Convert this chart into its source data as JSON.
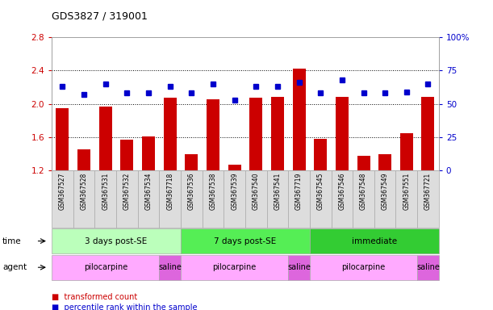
{
  "title": "GDS3827 / 319001",
  "samples": [
    "GSM367527",
    "GSM367528",
    "GSM367531",
    "GSM367532",
    "GSM367534",
    "GSM367718",
    "GSM367536",
    "GSM367538",
    "GSM367539",
    "GSM367540",
    "GSM367541",
    "GSM367719",
    "GSM367545",
    "GSM367546",
    "GSM367548",
    "GSM367549",
    "GSM367551",
    "GSM367721"
  ],
  "bar_values": [
    1.95,
    1.45,
    1.97,
    1.57,
    1.61,
    2.07,
    1.4,
    2.05,
    1.27,
    2.07,
    2.08,
    2.42,
    1.58,
    2.08,
    1.38,
    1.4,
    1.65,
    2.08
  ],
  "dot_percentiles": [
    63,
    57,
    65,
    58,
    58,
    63,
    58,
    65,
    53,
    63,
    63,
    66,
    58,
    68,
    58,
    58,
    59,
    65
  ],
  "ylim": [
    1.2,
    2.8
  ],
  "y_left_ticks": [
    1.2,
    1.6,
    2.0,
    2.4,
    2.8
  ],
  "y_right_ticks": [
    0,
    25,
    50,
    75,
    100
  ],
  "bar_color": "#cc0000",
  "dot_color": "#0000cc",
  "bar_bottom": 1.2,
  "groups": [
    {
      "label": "3 days post-SE",
      "start": 0,
      "end": 5,
      "color": "#bbffbb"
    },
    {
      "label": "7 days post-SE",
      "start": 6,
      "end": 11,
      "color": "#55ee55"
    },
    {
      "label": "immediate",
      "start": 12,
      "end": 17,
      "color": "#33cc33"
    }
  ],
  "agents": [
    {
      "label": "pilocarpine",
      "start": 0,
      "end": 4,
      "color": "#ffaaff"
    },
    {
      "label": "saline",
      "start": 5,
      "end": 5,
      "color": "#dd66dd"
    },
    {
      "label": "pilocarpine",
      "start": 6,
      "end": 10,
      "color": "#ffaaff"
    },
    {
      "label": "saline",
      "start": 11,
      "end": 11,
      "color": "#dd66dd"
    },
    {
      "label": "pilocarpine",
      "start": 12,
      "end": 16,
      "color": "#ffaaff"
    },
    {
      "label": "saline",
      "start": 17,
      "end": 17,
      "color": "#dd66dd"
    }
  ],
  "time_label": "time",
  "agent_label": "agent",
  "legend_bar": "transformed count",
  "legend_dot": "percentile rank within the sample",
  "tick_color_left": "#cc0000",
  "tick_color_right": "#0000cc",
  "sample_bg": "#dddddd",
  "sample_border": "#aaaaaa"
}
